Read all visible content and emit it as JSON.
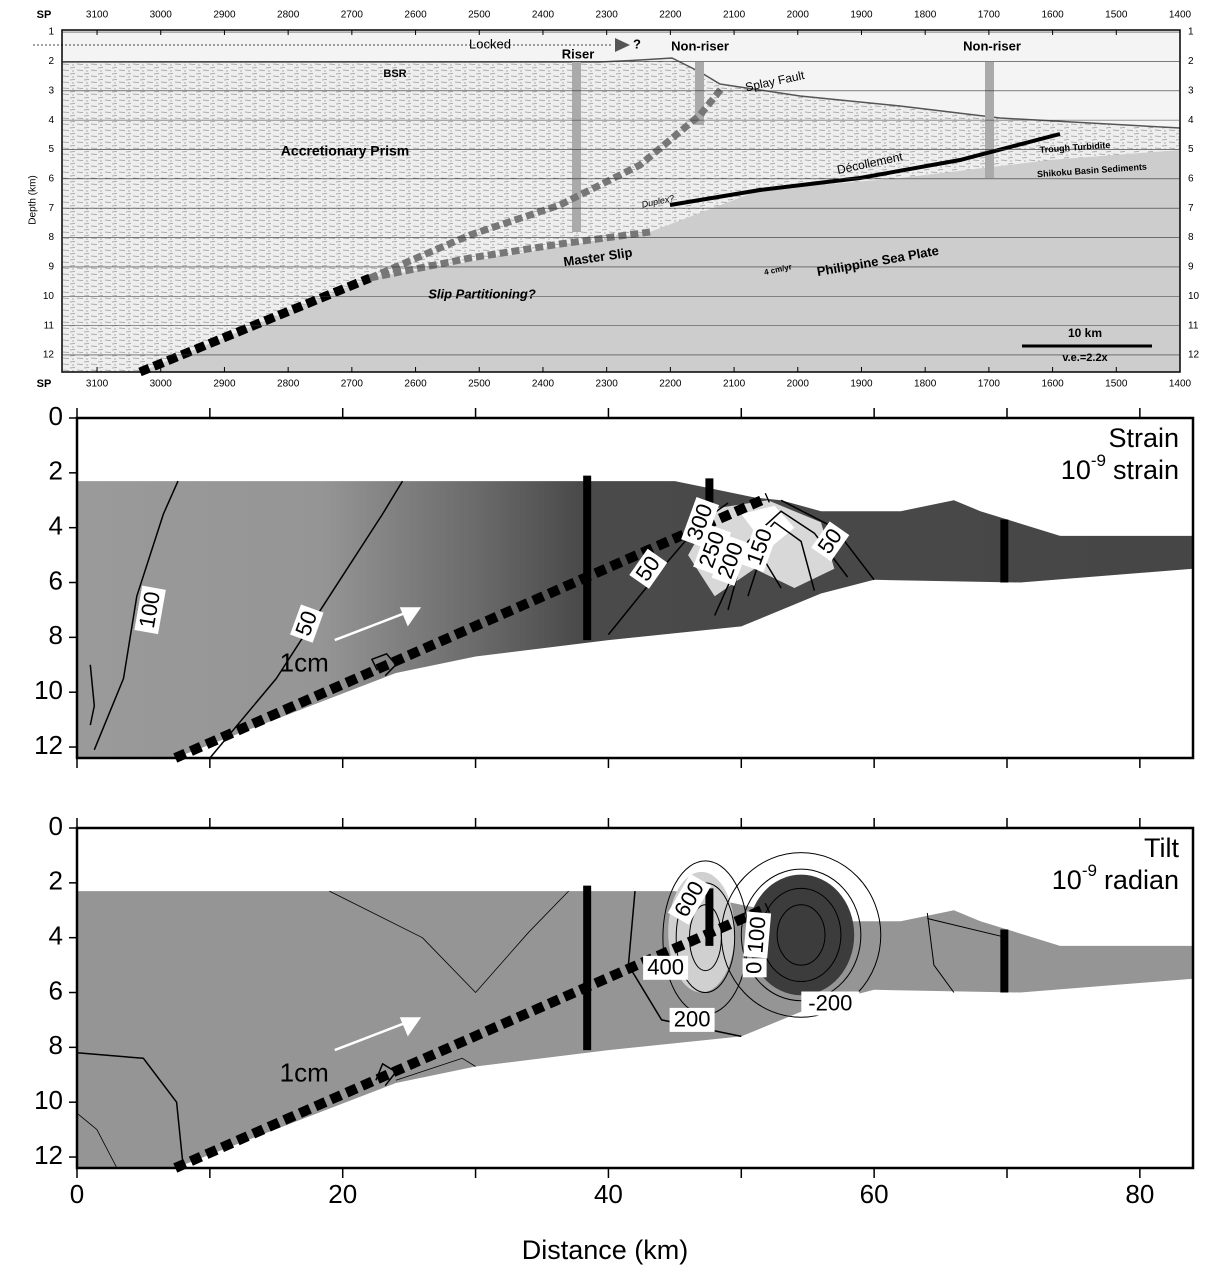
{
  "chart_data": [
    {
      "type": "seismic-section",
      "x_label": "SP",
      "y_label": "Depth (km)",
      "xlim": [
        3155,
        1400
      ],
      "xticks": [
        3100,
        3000,
        2900,
        2800,
        2700,
        2600,
        2500,
        2400,
        2300,
        2200,
        2100,
        2000,
        1900,
        1800,
        1700,
        1600,
        1500,
        1400
      ],
      "ylim": [
        0.93,
        12.58
      ],
      "yticks": [
        1,
        2,
        3,
        4,
        5,
        6,
        7,
        8,
        9,
        10,
        11,
        12
      ],
      "annotations": [
        "Locked",
        "?",
        "Riser",
        "Non-riser",
        "Non-riser",
        "BSR",
        "Splay Fault",
        "Accretionary Prism",
        "Décollement",
        "Trough Turbidite",
        "Shikoku Basin Sediments",
        "Duplex?",
        "Master Slip",
        "Philippine Sea Plate",
        "4 cm/yr",
        "Slip Partitioning?"
      ],
      "scale_bar": "10 km",
      "vertical_exaggeration": "v.e.=2.2x"
    },
    {
      "type": "contour",
      "title": "Strain",
      "unit": {
        "base": "10",
        "exponent": "-9",
        "name": "strain"
      },
      "xlim": [
        0,
        84
      ],
      "xticks": [
        0,
        20,
        40,
        60,
        80
      ],
      "minor_xticks": [
        10,
        30,
        50,
        70
      ],
      "ylim": [
        0,
        12.4
      ],
      "yticks": [
        0,
        2,
        4,
        6,
        8,
        10,
        12
      ],
      "contour_labels": [
        100,
        50,
        50,
        50,
        300,
        250,
        200,
        150
      ],
      "arrow_label": "1cm"
    },
    {
      "type": "contour",
      "title": "Tilt",
      "unit": {
        "base": "10",
        "exponent": "-9",
        "name": "radian"
      },
      "xlim": [
        0,
        84
      ],
      "xticks": [
        0,
        20,
        40,
        60,
        80
      ],
      "minor_xticks": [
        10,
        30,
        50,
        70
      ],
      "ylim": [
        0,
        12.4
      ],
      "yticks": [
        0,
        2,
        4,
        6,
        8,
        10,
        12
      ],
      "contour_labels": [
        600,
        400,
        200,
        100,
        0,
        -200
      ],
      "arrow_label": "1cm",
      "x_label": "Distance (km)"
    }
  ]
}
